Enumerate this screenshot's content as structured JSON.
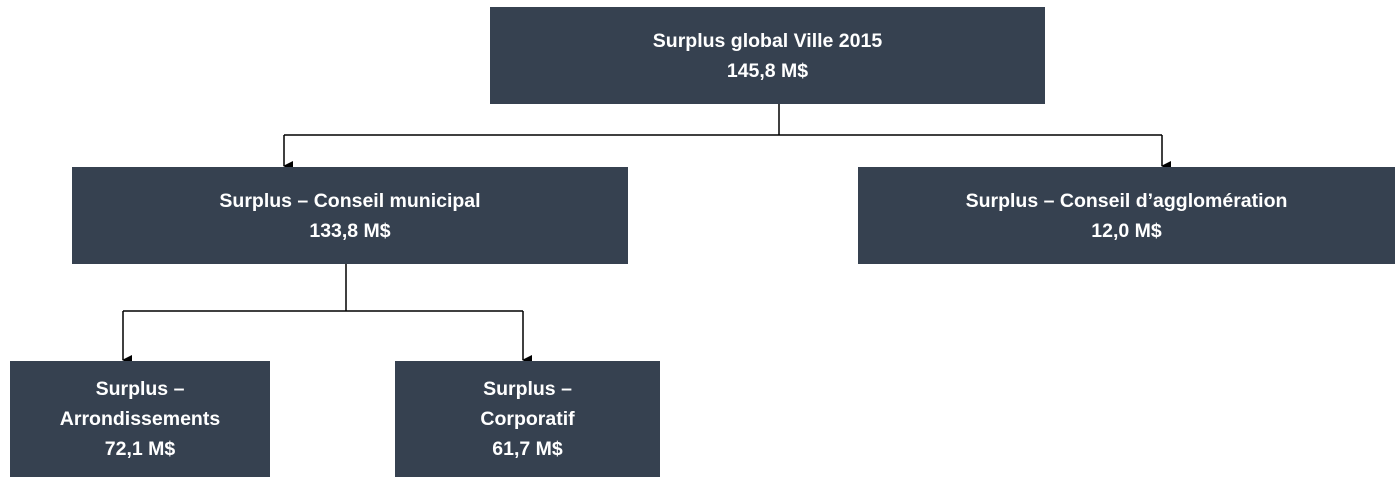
{
  "nodes": [
    {
      "lines": [
        "Surplus global Ville 2015"
      ],
      "value": "145,8 M$"
    },
    {
      "lines": [
        "Surplus – Conseil municipal"
      ],
      "value": "133,8 M$"
    },
    {
      "lines": [
        "Surplus – Conseil d’agglomération"
      ],
      "value": "12,0 M$"
    },
    {
      "lines": [
        "Surplus –",
        "Arrondissements"
      ],
      "value": "72,1 M$"
    },
    {
      "lines": [
        "Surplus –",
        "Corporatif"
      ],
      "value": "61,7 M$"
    }
  ]
}
